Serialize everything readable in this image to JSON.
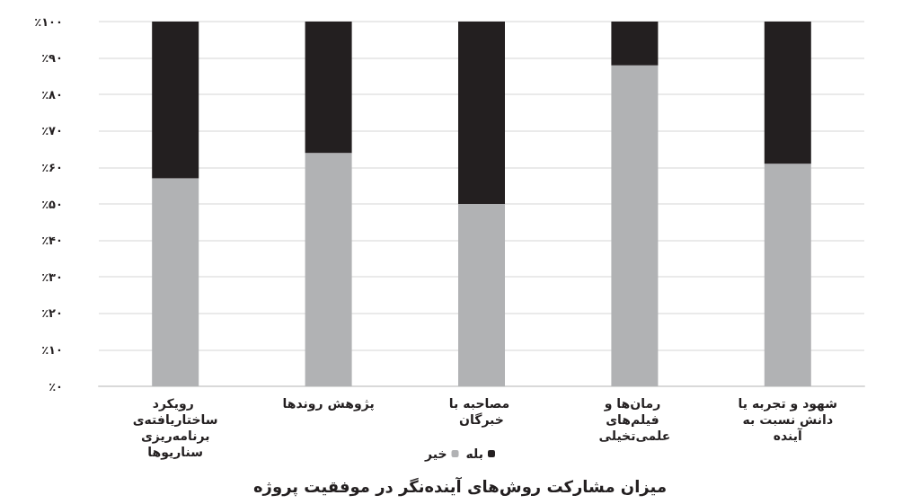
{
  "chart_data": {
    "type": "bar",
    "title": "میزان مشارکت روش‌های آینده‌نگر در موفقیت پروژه",
    "categories": [
      "رویکرد ساختاریافته‌ی برنامه‌ریزی سناریوها",
      "پژوهش روندها",
      "مصاحبه با خبرگان",
      "رمان‌ها و فیلم‌های علمی‌تخیلی",
      "شهود و تجربه یا دانش نسبت به آینده"
    ],
    "series": [
      {
        "name": "خیر",
        "color": "#b1b2b4",
        "values": [
          57,
          64,
          50,
          88,
          61
        ]
      },
      {
        "name": "بله",
        "color": "#231f20",
        "values": [
          43,
          36,
          50,
          12,
          39
        ]
      }
    ],
    "stacked": true,
    "ylim": [
      0,
      100
    ],
    "yticks": [
      {
        "value": 0,
        "label": "٪۰"
      },
      {
        "value": 10,
        "label": "٪۱۰"
      },
      {
        "value": 20,
        "label": "٪۲۰"
      },
      {
        "value": 30,
        "label": "٪۳۰"
      },
      {
        "value": 40,
        "label": "٪۴۰"
      },
      {
        "value": 50,
        "label": "٪۵۰"
      },
      {
        "value": 60,
        "label": "٪۶۰"
      },
      {
        "value": 70,
        "label": "٪۷۰"
      },
      {
        "value": 80,
        "label": "٪۸۰"
      },
      {
        "value": 90,
        "label": "٪۹۰"
      },
      {
        "value": 100,
        "label": "٪۱۰۰"
      }
    ],
    "grid": "y",
    "legend": "bottom"
  }
}
